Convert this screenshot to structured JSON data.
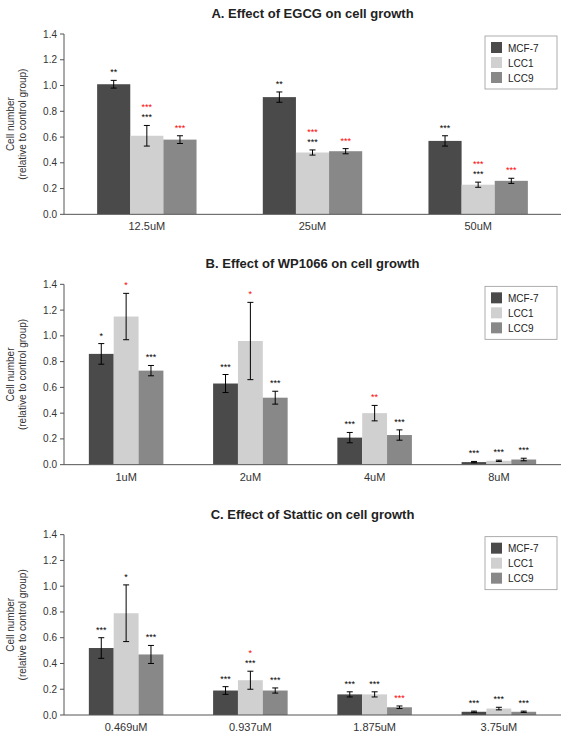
{
  "chart_data": [
    {
      "type": "bar",
      "title": "A.  Effect of EGCG on cell growth",
      "ylabel": "Cell number\n(relative to control group)",
      "categories": [
        "12.5uM",
        "25uM",
        "50uM"
      ],
      "series": [
        {
          "name": "MCF-7",
          "color": "#4a4a4a",
          "values": [
            1.01,
            0.91,
            0.57
          ],
          "errors": [
            0.03,
            0.04,
            0.04
          ],
          "annotations": [
            [
              {
                "text": "**",
                "color": "black"
              }
            ],
            [
              {
                "text": "**",
                "color": "black"
              }
            ],
            [
              {
                "text": "***",
                "color": "black"
              }
            ]
          ]
        },
        {
          "name": "LCC1",
          "color": "#d0d0d0",
          "values": [
            0.61,
            0.48,
            0.23
          ],
          "errors": [
            0.08,
            0.02,
            0.02
          ],
          "annotations": [
            [
              {
                "text": "***",
                "color": "black"
              },
              {
                "text": "***",
                "color": "red"
              }
            ],
            [
              {
                "text": "***",
                "color": "black"
              },
              {
                "text": "***",
                "color": "red"
              }
            ],
            [
              {
                "text": "***",
                "color": "black"
              },
              {
                "text": "***",
                "color": "red"
              }
            ]
          ]
        },
        {
          "name": "LCC9",
          "color": "#888888",
          "values": [
            0.58,
            0.49,
            0.26
          ],
          "errors": [
            0.03,
            0.02,
            0.02
          ],
          "annotations": [
            [
              {
                "text": "***",
                "color": "red"
              }
            ],
            [
              {
                "text": "***",
                "color": "red"
              }
            ],
            [
              {
                "text": "***",
                "color": "red"
              }
            ]
          ]
        }
      ],
      "ylim": [
        0,
        1.4
      ],
      "yticks": [
        {
          "value": 0,
          "label": "0.0"
        },
        0.2,
        0.4,
        0.6,
        0.8,
        {
          "value": 1.0,
          "label": "1.0"
        },
        1.2,
        1.4
      ],
      "grid": false,
      "legend": "upper right"
    },
    {
      "type": "bar",
      "title": "B.  Effect of WP1066 on cell growth",
      "ylabel": "Cell number\n(relative to control group)",
      "categories": [
        "1uM",
        "2uM",
        "4uM",
        "8uM"
      ],
      "series": [
        {
          "name": "MCF-7",
          "color": "#4a4a4a",
          "values": [
            0.86,
            0.63,
            0.21,
            0.02
          ],
          "errors": [
            0.08,
            0.07,
            0.04,
            0.005
          ],
          "annotations": [
            [
              {
                "text": "*",
                "color": "black"
              }
            ],
            [
              {
                "text": "***",
                "color": "black"
              }
            ],
            [
              {
                "text": "***",
                "color": "black"
              }
            ],
            [
              {
                "text": "***",
                "color": "black"
              }
            ]
          ]
        },
        {
          "name": "LCC1",
          "color": "#d0d0d0",
          "values": [
            1.15,
            0.96,
            0.4,
            0.03
          ],
          "errors": [
            0.18,
            0.3,
            0.06,
            0.005
          ],
          "annotations": [
            [
              {
                "text": "*",
                "color": "red"
              }
            ],
            [
              {
                "text": "*",
                "color": "red"
              }
            ],
            [
              {
                "text": "**",
                "color": "red"
              }
            ],
            [
              {
                "text": "***",
                "color": "black"
              }
            ]
          ]
        },
        {
          "name": "LCC9",
          "color": "#888888",
          "values": [
            0.73,
            0.52,
            0.23,
            0.04
          ],
          "errors": [
            0.04,
            0.05,
            0.04,
            0.01
          ],
          "annotations": [
            [
              {
                "text": "***",
                "color": "black"
              }
            ],
            [
              {
                "text": "***",
                "color": "black"
              }
            ],
            [
              {
                "text": "***",
                "color": "black"
              }
            ],
            [
              {
                "text": "***",
                "color": "black"
              }
            ]
          ]
        }
      ],
      "ylim": [
        0,
        1.4
      ],
      "yticks": [
        {
          "value": 0,
          "label": "0.0"
        },
        0.2,
        0.4,
        0.6,
        0.8,
        {
          "value": 1.0,
          "label": "1.0"
        },
        1.2,
        1.4
      ],
      "grid": false,
      "legend": "upper right"
    },
    {
      "type": "bar",
      "title": "C.  Effect of Stattic on cell growth",
      "ylabel": "Cell number\n(relative to control group)",
      "categories": [
        "0.469uM",
        "0.937uM",
        "1.875uM",
        "3.75uM"
      ],
      "series": [
        {
          "name": "MCF-7",
          "color": "#4a4a4a",
          "values": [
            0.52,
            0.19,
            0.16,
            0.025
          ],
          "errors": [
            0.08,
            0.03,
            0.02,
            0.005
          ],
          "annotations": [
            [
              {
                "text": "***",
                "color": "black"
              }
            ],
            [
              {
                "text": "***",
                "color": "black"
              }
            ],
            [
              {
                "text": "***",
                "color": "black"
              }
            ],
            [
              {
                "text": "***",
                "color": "black"
              }
            ]
          ]
        },
        {
          "name": "LCC1",
          "color": "#d0d0d0",
          "values": [
            0.79,
            0.27,
            0.16,
            0.05
          ],
          "errors": [
            0.22,
            0.07,
            0.02,
            0.01
          ],
          "annotations": [
            [
              {
                "text": "*",
                "color": "black"
              }
            ],
            [
              {
                "text": "***",
                "color": "black"
              },
              {
                "text": "*",
                "color": "red"
              }
            ],
            [
              {
                "text": "***",
                "color": "black"
              }
            ],
            [
              {
                "text": "***",
                "color": "black"
              }
            ]
          ]
        },
        {
          "name": "LCC9",
          "color": "#888888",
          "values": [
            0.47,
            0.19,
            0.06,
            0.025
          ],
          "errors": [
            0.07,
            0.02,
            0.01,
            0.005
          ],
          "annotations": [
            [
              {
                "text": "***",
                "color": "black"
              }
            ],
            [
              {
                "text": "***",
                "color": "black"
              }
            ],
            [
              {
                "text": "***",
                "color": "red"
              }
            ],
            [
              {
                "text": "***",
                "color": "black"
              }
            ]
          ]
        }
      ],
      "ylim": [
        0,
        1.4
      ],
      "yticks": [
        {
          "value": 0,
          "label": "0.0"
        },
        0.2,
        0.4,
        0.6,
        0.8,
        {
          "value": 1.0,
          "label": "1.0"
        },
        1.2,
        1.4
      ],
      "grid": false,
      "legend": "upper right"
    }
  ]
}
